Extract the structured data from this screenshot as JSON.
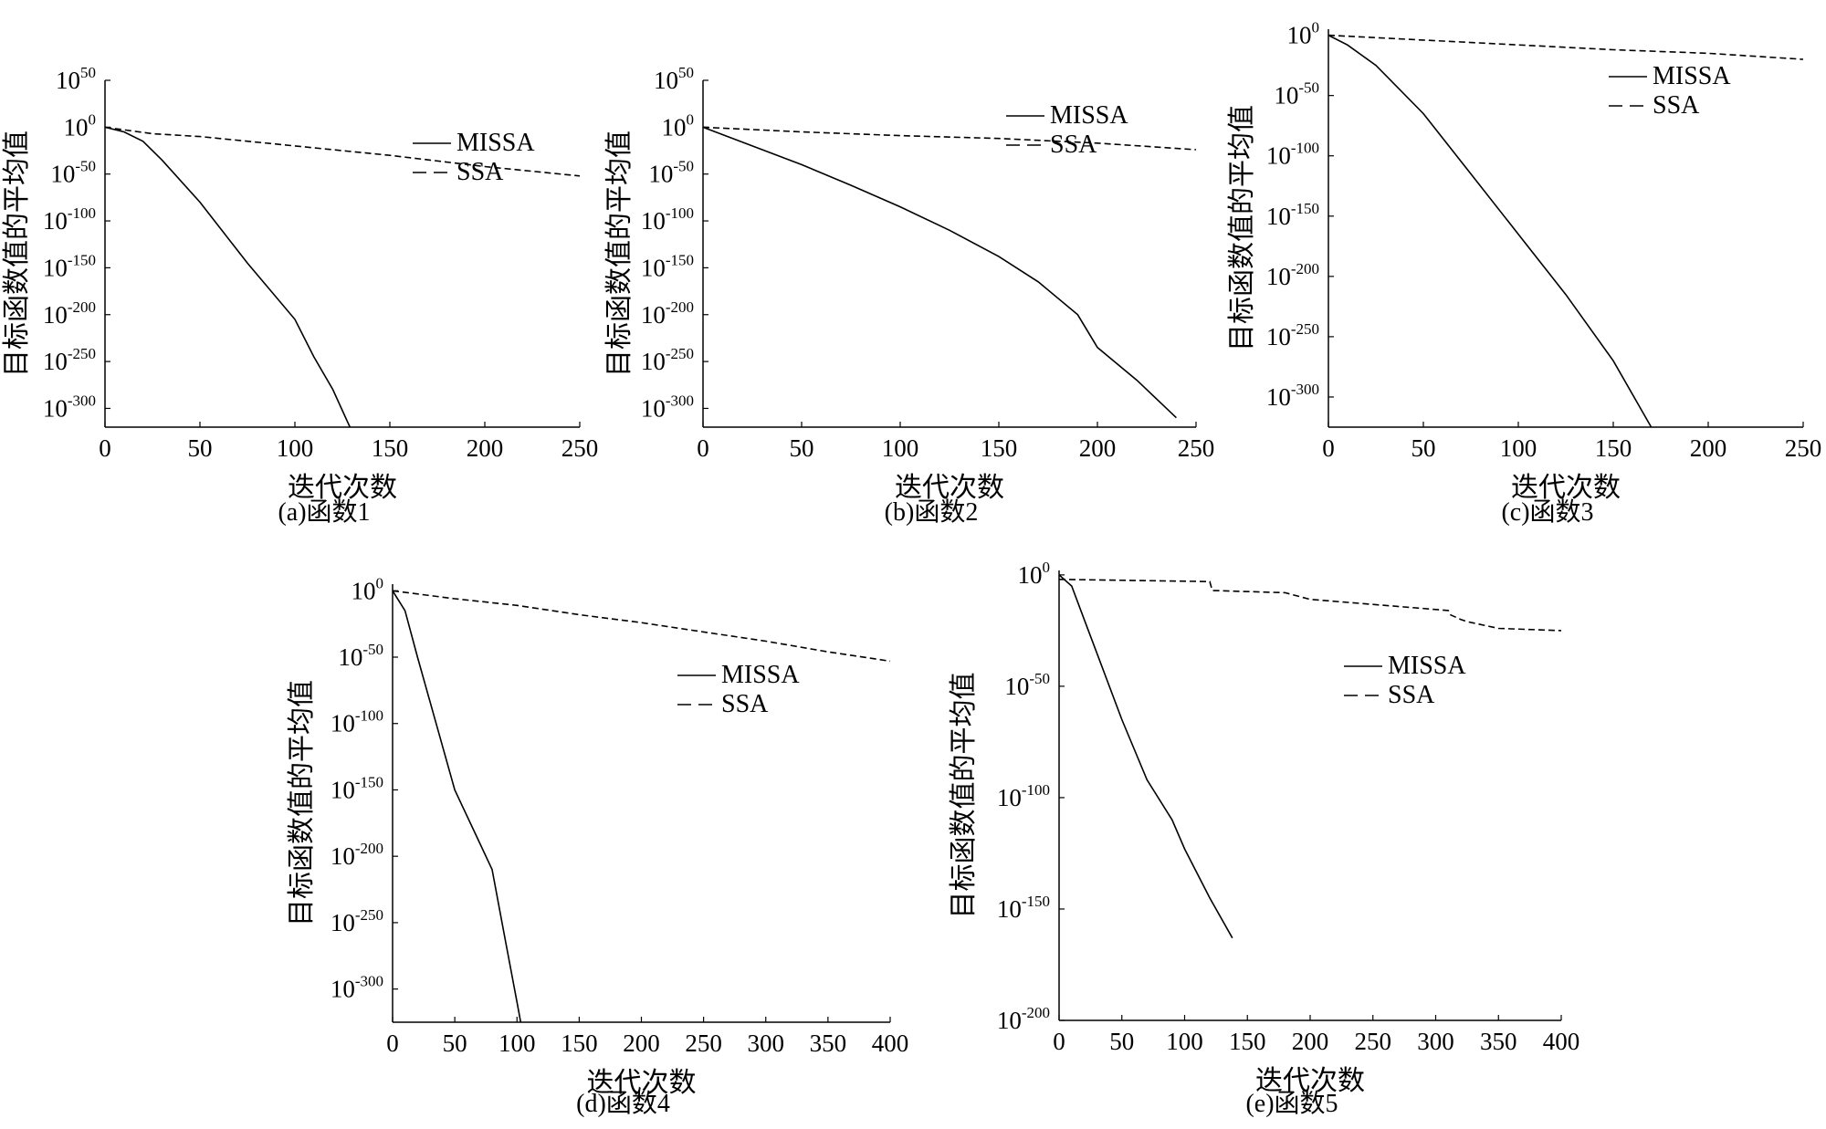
{
  "charts": [
    {
      "type": "line",
      "caption": "(a)函数1",
      "xlabel": "迭代次数",
      "ylabel": "目标函数值的平均值",
      "xlim": [
        0,
        250
      ],
      "xticks": [
        0,
        50,
        100,
        150,
        200,
        250
      ],
      "ylim": [
        -320,
        50
      ],
      "yticks": [
        50,
        0,
        -50,
        -100,
        -150,
        -200,
        -250,
        -300
      ],
      "yscale": "log10",
      "legend": "right",
      "series": [
        {
          "name": "MISSA",
          "style": "solid",
          "x": [
            0,
            10,
            20,
            30,
            50,
            75,
            100,
            110,
            120,
            129
          ],
          "y": [
            0,
            -5,
            -15,
            -35,
            -80,
            -145,
            -205,
            -245,
            -280,
            -320
          ]
        },
        {
          "name": "SSA",
          "style": "dashed",
          "x": [
            0,
            25,
            50,
            100,
            150,
            200,
            250
          ],
          "y": [
            0,
            -7,
            -10,
            -20,
            -30,
            -42,
            -52
          ]
        }
      ]
    },
    {
      "type": "line",
      "caption": "(b)函数2",
      "xlabel": "迭代次数",
      "ylabel": "目标函数值的平均值",
      "xlim": [
        0,
        250
      ],
      "xticks": [
        0,
        50,
        100,
        150,
        200,
        250
      ],
      "ylim": [
        -320,
        50
      ],
      "yticks": [
        50,
        0,
        -50,
        -100,
        -150,
        -200,
        -250,
        -300
      ],
      "yscale": "log10",
      "legend": "right",
      "series": [
        {
          "name": "MISSA",
          "style": "solid",
          "x": [
            0,
            25,
            50,
            75,
            100,
            125,
            150,
            170,
            190,
            200,
            220,
            240
          ],
          "y": [
            0,
            -20,
            -40,
            -62,
            -85,
            -110,
            -138,
            -165,
            -200,
            -235,
            -270,
            -310
          ]
        },
        {
          "name": "SSA",
          "style": "dashed",
          "x": [
            0,
            50,
            100,
            150,
            200,
            250
          ],
          "y": [
            0,
            -5,
            -9,
            -12,
            -17,
            -24
          ]
        }
      ]
    },
    {
      "type": "line",
      "caption": "(c)函数3",
      "xlabel": "迭代次数",
      "ylabel": "目标函数值的平均值",
      "xlim": [
        0,
        250
      ],
      "xticks": [
        0,
        50,
        100,
        150,
        200,
        250
      ],
      "ylim": [
        -325,
        5
      ],
      "yticks": [
        0,
        -50,
        -100,
        -150,
        -200,
        -250,
        -300
      ],
      "yscale": "log10",
      "legend": "right",
      "series": [
        {
          "name": "MISSA",
          "style": "solid",
          "x": [
            0,
            10,
            25,
            50,
            75,
            100,
            125,
            150,
            170
          ],
          "y": [
            0,
            -8,
            -25,
            -65,
            -115,
            -165,
            -215,
            -270,
            -325
          ]
        },
        {
          "name": "SSA",
          "style": "dashed",
          "x": [
            0,
            50,
            100,
            150,
            200,
            250
          ],
          "y": [
            0,
            -4,
            -8,
            -12,
            -15,
            -20
          ]
        }
      ]
    },
    {
      "type": "line",
      "caption": "(d)函数4",
      "xlabel": "迭代次数",
      "ylabel": "目标函数值的平均值",
      "xlim": [
        0,
        400
      ],
      "xticks": [
        0,
        50,
        100,
        150,
        200,
        250,
        300,
        350,
        400
      ],
      "ylim": [
        -325,
        5
      ],
      "yticks": [
        0,
        -50,
        -100,
        -150,
        -200,
        -250,
        -300
      ],
      "yscale": "log10",
      "legend": "right",
      "series": [
        {
          "name": "MISSA",
          "style": "solid",
          "x": [
            0,
            10,
            20,
            35,
            50,
            70,
            80,
            90,
            100,
            103
          ],
          "y": [
            0,
            -15,
            -50,
            -100,
            -150,
            -190,
            -210,
            -260,
            -310,
            -325
          ]
        },
        {
          "name": "SSA",
          "style": "dashed",
          "x": [
            0,
            50,
            100,
            150,
            200,
            250,
            300,
            350,
            400
          ],
          "y": [
            0,
            -6,
            -11,
            -18,
            -24,
            -31,
            -38,
            -46,
            -53
          ]
        }
      ]
    },
    {
      "type": "line",
      "caption": "(e)函数5",
      "xlabel": "迭代次数",
      "ylabel": "目标函数值的平均值",
      "xlim": [
        0,
        400
      ],
      "xticks": [
        0,
        50,
        100,
        150,
        200,
        250,
        300,
        350,
        400
      ],
      "ylim": [
        -200,
        2
      ],
      "yticks": [
        0,
        -50,
        -100,
        -150,
        -200
      ],
      "yscale": "log10",
      "legend": "right",
      "series": [
        {
          "name": "MISSA",
          "style": "solid",
          "x": [
            0,
            10,
            20,
            30,
            50,
            70,
            90,
            100,
            120,
            138
          ],
          "y": [
            0,
            -5,
            -20,
            -35,
            -65,
            -92,
            -110,
            -123,
            -145,
            -163
          ]
        },
        {
          "name": "SSA",
          "style": "dashed",
          "x": [
            0,
            120,
            122,
            180,
            200,
            310,
            312,
            320,
            325,
            350,
            400
          ],
          "y": [
            -2,
            -3,
            -7,
            -8,
            -11,
            -16,
            -18,
            -20,
            -21,
            -24,
            -25
          ]
        }
      ]
    }
  ]
}
